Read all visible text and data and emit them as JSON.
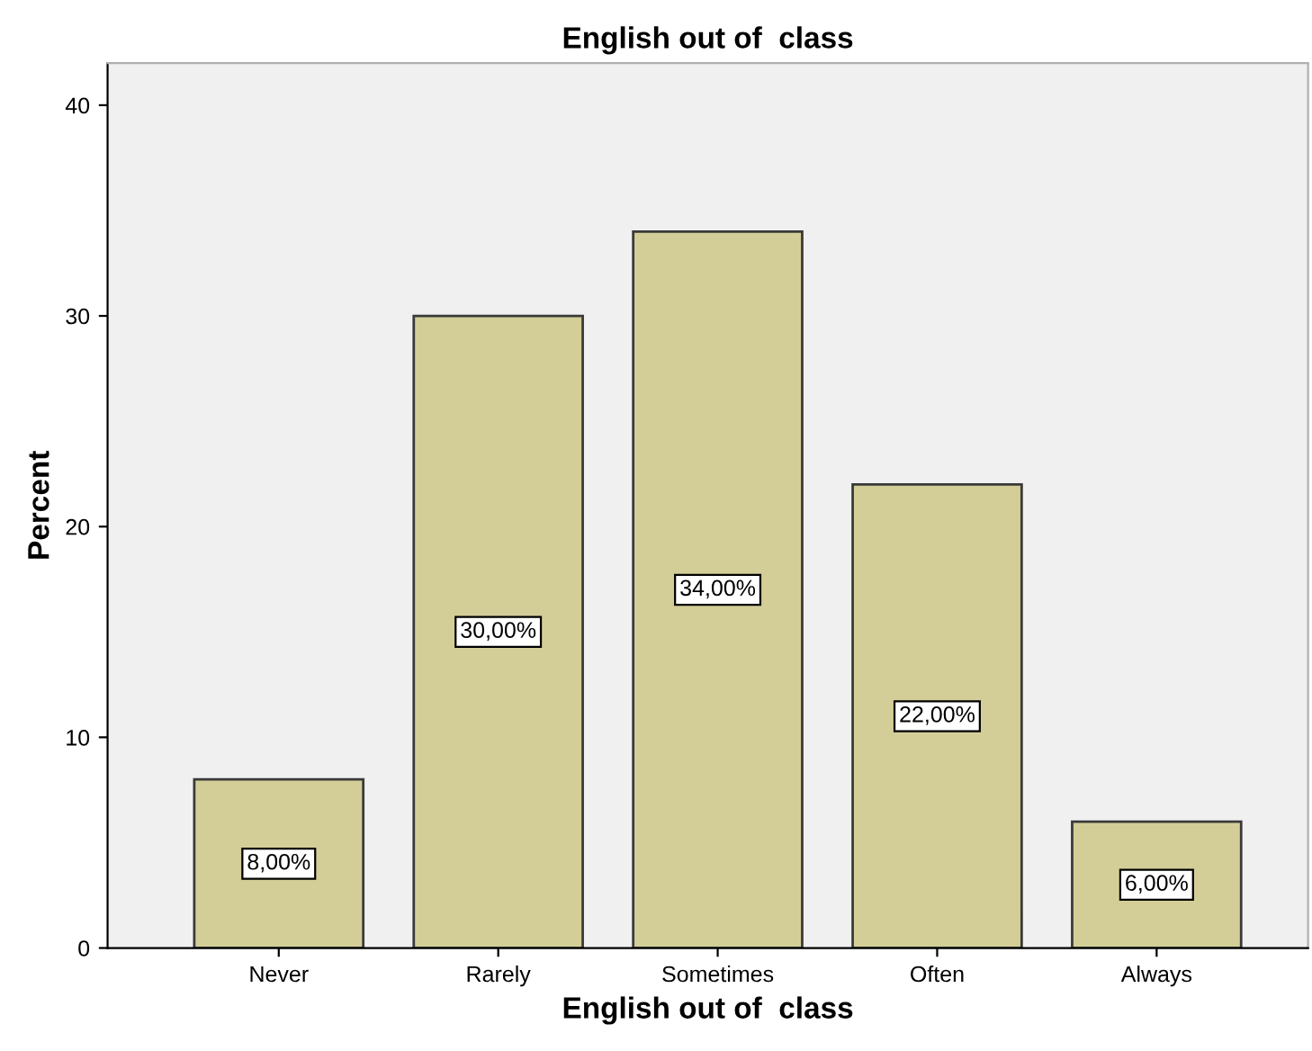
{
  "chart_data": {
    "type": "bar",
    "title": "English out of  class",
    "xlabel": "English out of  class",
    "ylabel": "Percent",
    "categories": [
      "Never",
      "Rarely",
      "Sometimes",
      "Often",
      "Always"
    ],
    "values": [
      8,
      30,
      34,
      22,
      6
    ],
    "value_labels": [
      "8,00%",
      "30,00%",
      "34,00%",
      "22,00%",
      "6,00%"
    ],
    "color": "#d3ce97",
    "ylim": [
      0,
      42
    ],
    "yticks": [
      0,
      10,
      20,
      30,
      40
    ],
    "grid": false,
    "legend": false
  }
}
